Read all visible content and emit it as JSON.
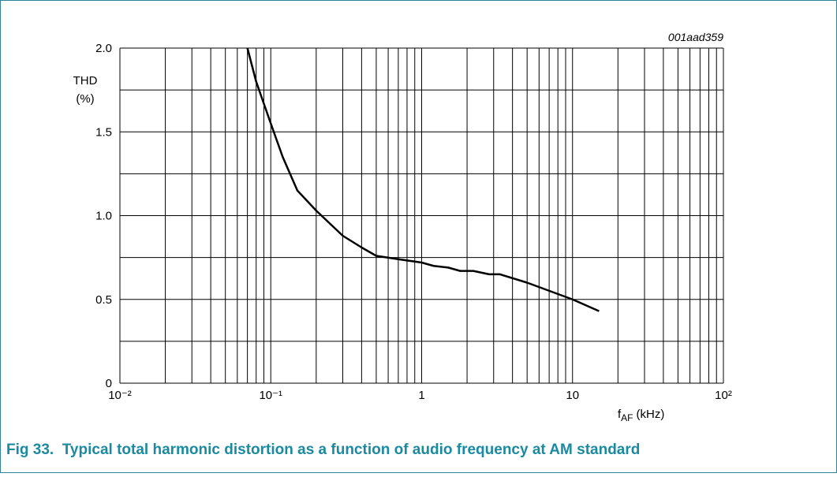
{
  "chart_data": {
    "type": "line",
    "annotation": "001aad359",
    "ylabel": [
      "THD",
      "(%)"
    ],
    "xlabel": {
      "main": "f",
      "sub": "AF",
      "unit": "(kHz)"
    },
    "caption": "Fig 33.  Typical total harmonic distortion as a function of audio frequency at AM standard",
    "xscale": "log",
    "xlim": [
      0.01,
      100
    ],
    "ylim": [
      0,
      2
    ],
    "xticks": [
      {
        "value": 0.01,
        "label": "10⁻²"
      },
      {
        "value": 0.1,
        "label": "10⁻¹"
      },
      1,
      10,
      {
        "value": 100,
        "label": "10²"
      }
    ],
    "xminor": [
      0.02,
      0.03,
      0.04,
      0.05,
      0.06,
      0.07,
      0.08,
      0.09,
      0.2,
      0.3,
      0.4,
      0.5,
      0.6,
      0.7,
      0.8,
      0.9,
      2,
      3,
      4,
      5,
      6,
      7,
      8,
      9,
      20,
      30,
      40,
      50,
      60,
      70,
      80,
      90
    ],
    "yticks": [
      0,
      0.5,
      {
        "value": 1,
        "label": "1.0"
      },
      1.5,
      {
        "value": 2,
        "label": "2.0"
      }
    ],
    "yminor": [
      0.25,
      0.75,
      1.25,
      1.75
    ],
    "grid": true,
    "x": [
      0.07,
      0.08,
      0.1,
      0.12,
      0.15,
      0.2,
      0.3,
      0.4,
      0.5,
      0.7,
      1,
      1.2,
      1.5,
      1.8,
      2.2,
      2.8,
      3.3,
      5,
      10,
      15
    ],
    "series": [
      {
        "color": "#000000",
        "values": [
          2.0,
          1.8,
          1.55,
          1.35,
          1.15,
          1.03,
          0.88,
          0.81,
          0.76,
          0.74,
          0.72,
          0.7,
          0.69,
          0.67,
          0.67,
          0.65,
          0.65,
          0.6,
          0.5,
          0.43
        ]
      }
    ]
  }
}
